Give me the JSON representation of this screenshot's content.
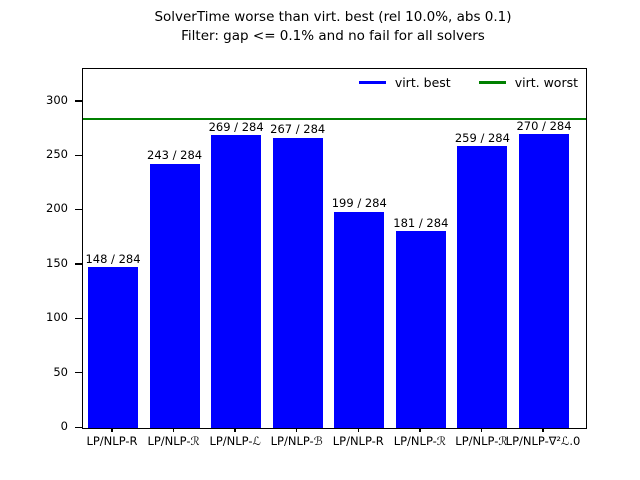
{
  "title": {
    "line1": "SolverTime worse than virt. best (rel 10.0%, abs 0.1)",
    "line2": "Filter: gap <= 0.1% and no fail for all solvers"
  },
  "legend": [
    {
      "name": "virt-best",
      "label": "virt. best",
      "color": "#0000ff"
    },
    {
      "name": "virt-worst",
      "label": "virt. worst",
      "color": "#008000"
    }
  ],
  "colors": {
    "bar_fill": "#0000ff",
    "virt_worst_line": "#008000",
    "axis": "#000000",
    "text": "#000000",
    "background": "#ffffff"
  },
  "chart_data": {
    "type": "bar",
    "title": "SolverTime worse than virt. best (rel 10.0%, abs 0.1)",
    "subtitle": "Filter: gap <= 0.1% and no fail for all solvers",
    "categories": [
      "LP/NLP-R",
      "LP/NLP-ℛ",
      "LP/NLP-ℒ",
      "LP/NLP-ℬ",
      "LP/NLP-R",
      "LP/NLP-ℛ",
      "LP/NLP-ℛ",
      "LP/NLP-∇²ℒ.0"
    ],
    "values": [
      148,
      243,
      269,
      267,
      199,
      181,
      259,
      270
    ],
    "bar_labels": [
      "148 / 284",
      "243 / 284",
      "269 / 284",
      "267 / 284",
      "199 / 284",
      "181 / 284",
      "259 / 284",
      "270 / 284"
    ],
    "instance_total": 284,
    "xlabel": "",
    "ylabel": "",
    "ylim": [
      0,
      330
    ],
    "yticks": [
      0,
      50,
      100,
      150,
      200,
      250,
      300
    ],
    "reference_lines": [
      {
        "name": "virt. worst",
        "value": 284,
        "color": "#008000"
      }
    ],
    "bar_color": "#0000ff",
    "legend_position": "upper right",
    "grid": false
  }
}
